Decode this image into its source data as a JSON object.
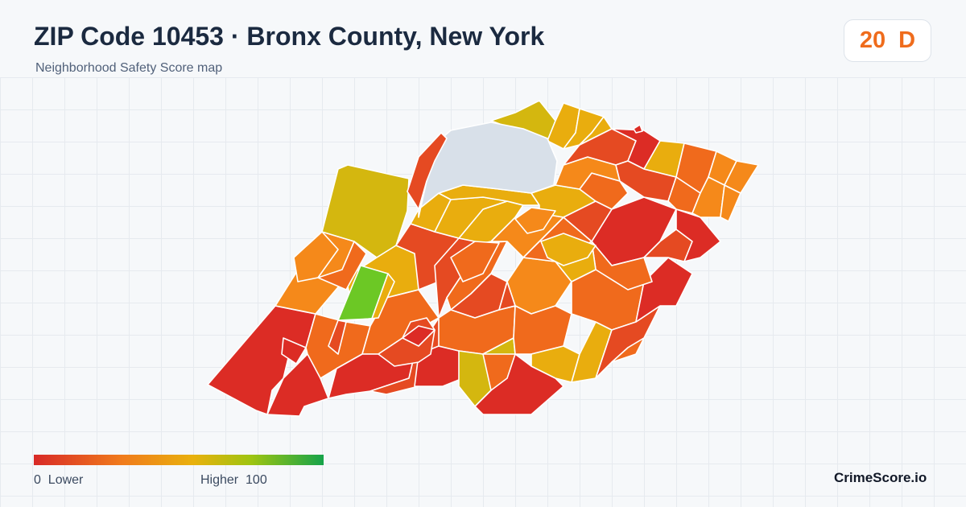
{
  "header": {
    "title": "ZIP Code 10453 · Bronx County, New York",
    "subtitle": "Neighborhood Safety Score map"
  },
  "score": {
    "value": "20",
    "grade": "D",
    "color": "#ef6c1c"
  },
  "legend": {
    "min_label": "0",
    "low_label": "Lower",
    "high_label": "Higher",
    "max_label": "100",
    "scale_colors": [
      "#d82a27",
      "#f07a1c",
      "#e9b10d",
      "#9ec411",
      "#16a34a"
    ]
  },
  "brand": "CrimeScore.io",
  "map": {
    "park_color": "#d8e0e9",
    "tract_colors": [
      "#dc2c25",
      "#e54a22",
      "#f06a1c",
      "#f5891a",
      "#e9ad0e",
      "#d4b70f",
      "#6cc825"
    ]
  }
}
